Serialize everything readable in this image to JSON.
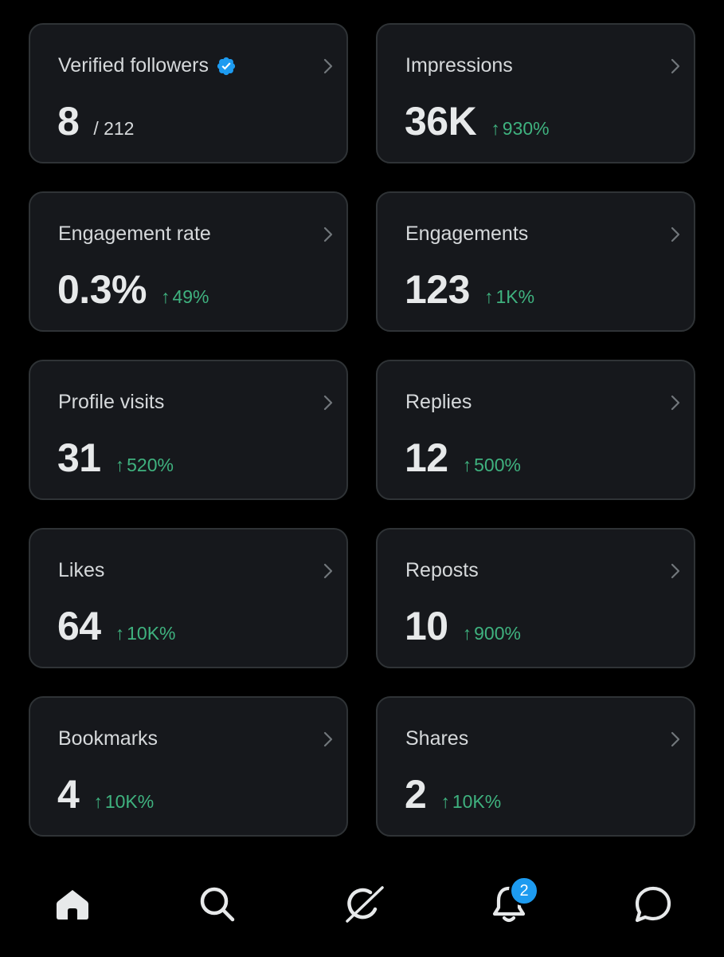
{
  "colors": {
    "background": "#000000",
    "card": "#16181c",
    "card_border": "#2f3336",
    "positive": "#3fb27f",
    "verified": "#1d9bf0",
    "badge": "#1d9bf0"
  },
  "cards": [
    {
      "label": "Verified followers",
      "value": "8",
      "sub": "/ 212",
      "delta": "",
      "verified": true
    },
    {
      "label": "Impressions",
      "value": "36K",
      "delta": "930%"
    },
    {
      "label": "Engagement rate",
      "value": "0.3%",
      "delta": "49%"
    },
    {
      "label": "Engagements",
      "value": "123",
      "delta": "1K%"
    },
    {
      "label": "Profile visits",
      "value": "31",
      "delta": "520%"
    },
    {
      "label": "Replies",
      "value": "12",
      "delta": "500%"
    },
    {
      "label": "Likes",
      "value": "64",
      "delta": "10K%"
    },
    {
      "label": "Reposts",
      "value": "10",
      "delta": "900%"
    },
    {
      "label": "Bookmarks",
      "value": "4",
      "delta": "10K%"
    },
    {
      "label": "Shares",
      "value": "2",
      "delta": "10K%"
    }
  ],
  "delta_arrow": "↑",
  "nav": {
    "items": [
      {
        "name": "home-icon"
      },
      {
        "name": "search-icon"
      },
      {
        "name": "grok-icon"
      },
      {
        "name": "bell-icon"
      },
      {
        "name": "messages-icon"
      }
    ],
    "notification_count": "2"
  }
}
